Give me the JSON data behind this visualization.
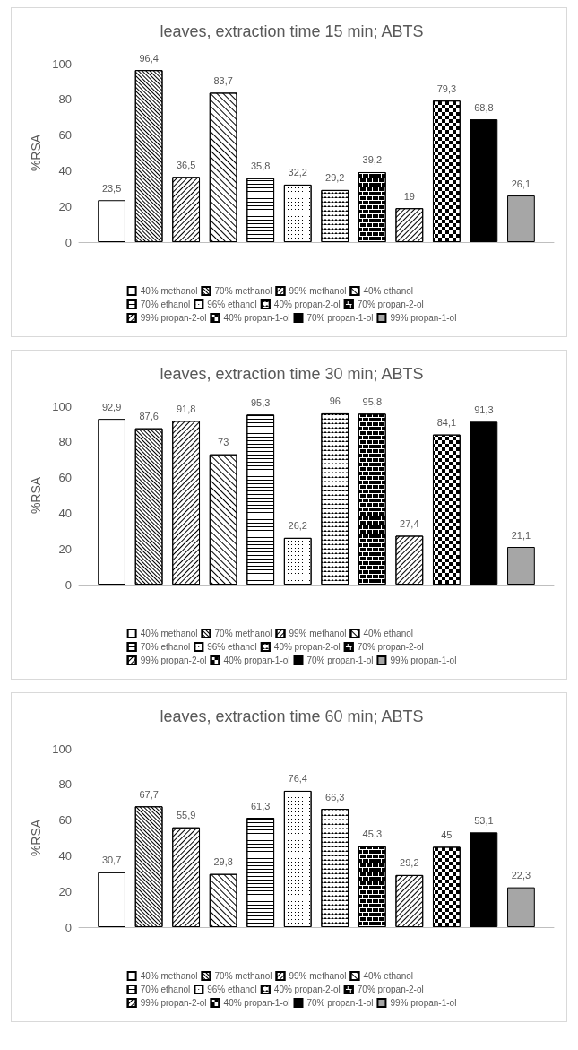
{
  "chart_data": [
    {
      "type": "bar",
      "title": "leaves, extraction time 15 min; ABTS",
      "ylabel": "%RSA",
      "categories": [
        null
      ],
      "ylim": [
        0,
        100
      ],
      "yticks": [
        0,
        20,
        40,
        60,
        80,
        100
      ],
      "grid": false,
      "legend": "bottom",
      "series": [
        {
          "name": "40% methanol",
          "color": "#ffffff",
          "values": [
            23.5
          ],
          "value_labels": [
            "23,5"
          ]
        },
        {
          "name": "70% methanol",
          "color": "#ffffff",
          "values": [
            96.4
          ],
          "value_labels": [
            "96,4"
          ]
        },
        {
          "name": "99% methanol",
          "color": "#ffffff",
          "values": [
            36.5
          ],
          "value_labels": [
            "36,5"
          ]
        },
        {
          "name": "40% ethanol",
          "color": "#ffffff",
          "values": [
            83.7
          ],
          "value_labels": [
            "83,7"
          ]
        },
        {
          "name": "70% ethanol",
          "color": "#ffffff",
          "values": [
            35.8
          ],
          "value_labels": [
            "35,8"
          ]
        },
        {
          "name": "96% ethanol",
          "color": "#ffffff",
          "values": [
            32.2
          ],
          "value_labels": [
            "32,2"
          ]
        },
        {
          "name": "40% propan-2-ol",
          "color": "#ffffff",
          "values": [
            29.2
          ],
          "value_labels": [
            "29,2"
          ]
        },
        {
          "name": "70% propan-2-ol",
          "color": "#ffffff",
          "values": [
            39.2
          ],
          "value_labels": [
            "39,2"
          ]
        },
        {
          "name": "99% propan-2-ol",
          "color": "#ffffff",
          "values": [
            19
          ],
          "value_labels": [
            "19"
          ]
        },
        {
          "name": "40% propan-1-ol",
          "color": "#ffffff",
          "values": [
            79.3
          ],
          "value_labels": [
            "79,3"
          ]
        },
        {
          "name": "70% propan-1-ol",
          "color": "#000000",
          "values": [
            68.8
          ],
          "value_labels": [
            "68,8"
          ]
        },
        {
          "name": "99% propan-1-ol",
          "color": "#a6a6a6",
          "values": [
            26.1
          ],
          "value_labels": [
            "26,1"
          ]
        }
      ]
    },
    {
      "type": "bar",
      "title": "leaves, extraction time 30 min; ABTS",
      "ylabel": "%RSA",
      "categories": [
        null
      ],
      "ylim": [
        0,
        100
      ],
      "yticks": [
        0,
        20,
        40,
        60,
        80,
        100
      ],
      "grid": false,
      "legend": "bottom",
      "series": [
        {
          "name": "40% methanol",
          "color": "#ffffff",
          "values": [
            92.9
          ],
          "value_labels": [
            "92,9"
          ]
        },
        {
          "name": "70% methanol",
          "color": "#ffffff",
          "values": [
            87.6
          ],
          "value_labels": [
            "87,6"
          ]
        },
        {
          "name": "99% methanol",
          "color": "#ffffff",
          "values": [
            91.8
          ],
          "value_labels": [
            "91,8"
          ]
        },
        {
          "name": "40% ethanol",
          "color": "#ffffff",
          "values": [
            73
          ],
          "value_labels": [
            "73"
          ]
        },
        {
          "name": "70% ethanol",
          "color": "#ffffff",
          "values": [
            95.3
          ],
          "value_labels": [
            "95,3"
          ]
        },
        {
          "name": "96% ethanol",
          "color": "#ffffff",
          "values": [
            26.2
          ],
          "value_labels": [
            "26,2"
          ]
        },
        {
          "name": "40% propan-2-ol",
          "color": "#ffffff",
          "values": [
            96
          ],
          "value_labels": [
            "96"
          ]
        },
        {
          "name": "70% propan-2-ol",
          "color": "#ffffff",
          "values": [
            95.8
          ],
          "value_labels": [
            "95,8"
          ]
        },
        {
          "name": "99% propan-2-ol",
          "color": "#ffffff",
          "values": [
            27.4
          ],
          "value_labels": [
            "27,4"
          ]
        },
        {
          "name": "40% propan-1-ol",
          "color": "#ffffff",
          "values": [
            84.1
          ],
          "value_labels": [
            "84,1"
          ]
        },
        {
          "name": "70% propan-1-ol",
          "color": "#000000",
          "values": [
            91.3
          ],
          "value_labels": [
            "91,3"
          ]
        },
        {
          "name": "99% propan-1-ol",
          "color": "#a6a6a6",
          "values": [
            21.1
          ],
          "value_labels": [
            "21,1"
          ]
        }
      ]
    },
    {
      "type": "bar",
      "title": "leaves, extraction time 60 min; ABTS",
      "ylabel": "%RSA",
      "categories": [
        null
      ],
      "ylim": [
        0,
        100
      ],
      "yticks": [
        0,
        20,
        40,
        60,
        80,
        100
      ],
      "grid": false,
      "legend": "bottom",
      "series": [
        {
          "name": "40% methanol",
          "color": "#ffffff",
          "values": [
            30.7
          ],
          "value_labels": [
            "30,7"
          ]
        },
        {
          "name": "70% methanol",
          "color": "#ffffff",
          "values": [
            67.7
          ],
          "value_labels": [
            "67,7"
          ]
        },
        {
          "name": "99% methanol",
          "color": "#ffffff",
          "values": [
            55.9
          ],
          "value_labels": [
            "55,9"
          ]
        },
        {
          "name": "40% ethanol",
          "color": "#ffffff",
          "values": [
            29.8
          ],
          "value_labels": [
            "29,8"
          ]
        },
        {
          "name": "70% ethanol",
          "color": "#ffffff",
          "values": [
            61.3
          ],
          "value_labels": [
            "61,3"
          ]
        },
        {
          "name": "96% ethanol",
          "color": "#ffffff",
          "values": [
            76.4
          ],
          "value_labels": [
            "76,4"
          ]
        },
        {
          "name": "40% propan-2-ol",
          "color": "#ffffff",
          "values": [
            66.3
          ],
          "value_labels": [
            "66,3"
          ]
        },
        {
          "name": "70% propan-2-ol",
          "color": "#ffffff",
          "values": [
            45.3
          ],
          "value_labels": [
            "45,3"
          ]
        },
        {
          "name": "99% propan-2-ol",
          "color": "#ffffff",
          "values": [
            29.2
          ],
          "value_labels": [
            "29,2"
          ]
        },
        {
          "name": "40% propan-1-ol",
          "color": "#ffffff",
          "values": [
            45
          ],
          "value_labels": [
            "45"
          ]
        },
        {
          "name": "70% propan-1-ol",
          "color": "#000000",
          "values": [
            53.1
          ],
          "value_labels": [
            "53,1"
          ]
        },
        {
          "name": "99% propan-1-ol",
          "color": "#a6a6a6",
          "values": [
            22.3
          ],
          "value_labels": [
            "22,3"
          ]
        }
      ]
    }
  ]
}
